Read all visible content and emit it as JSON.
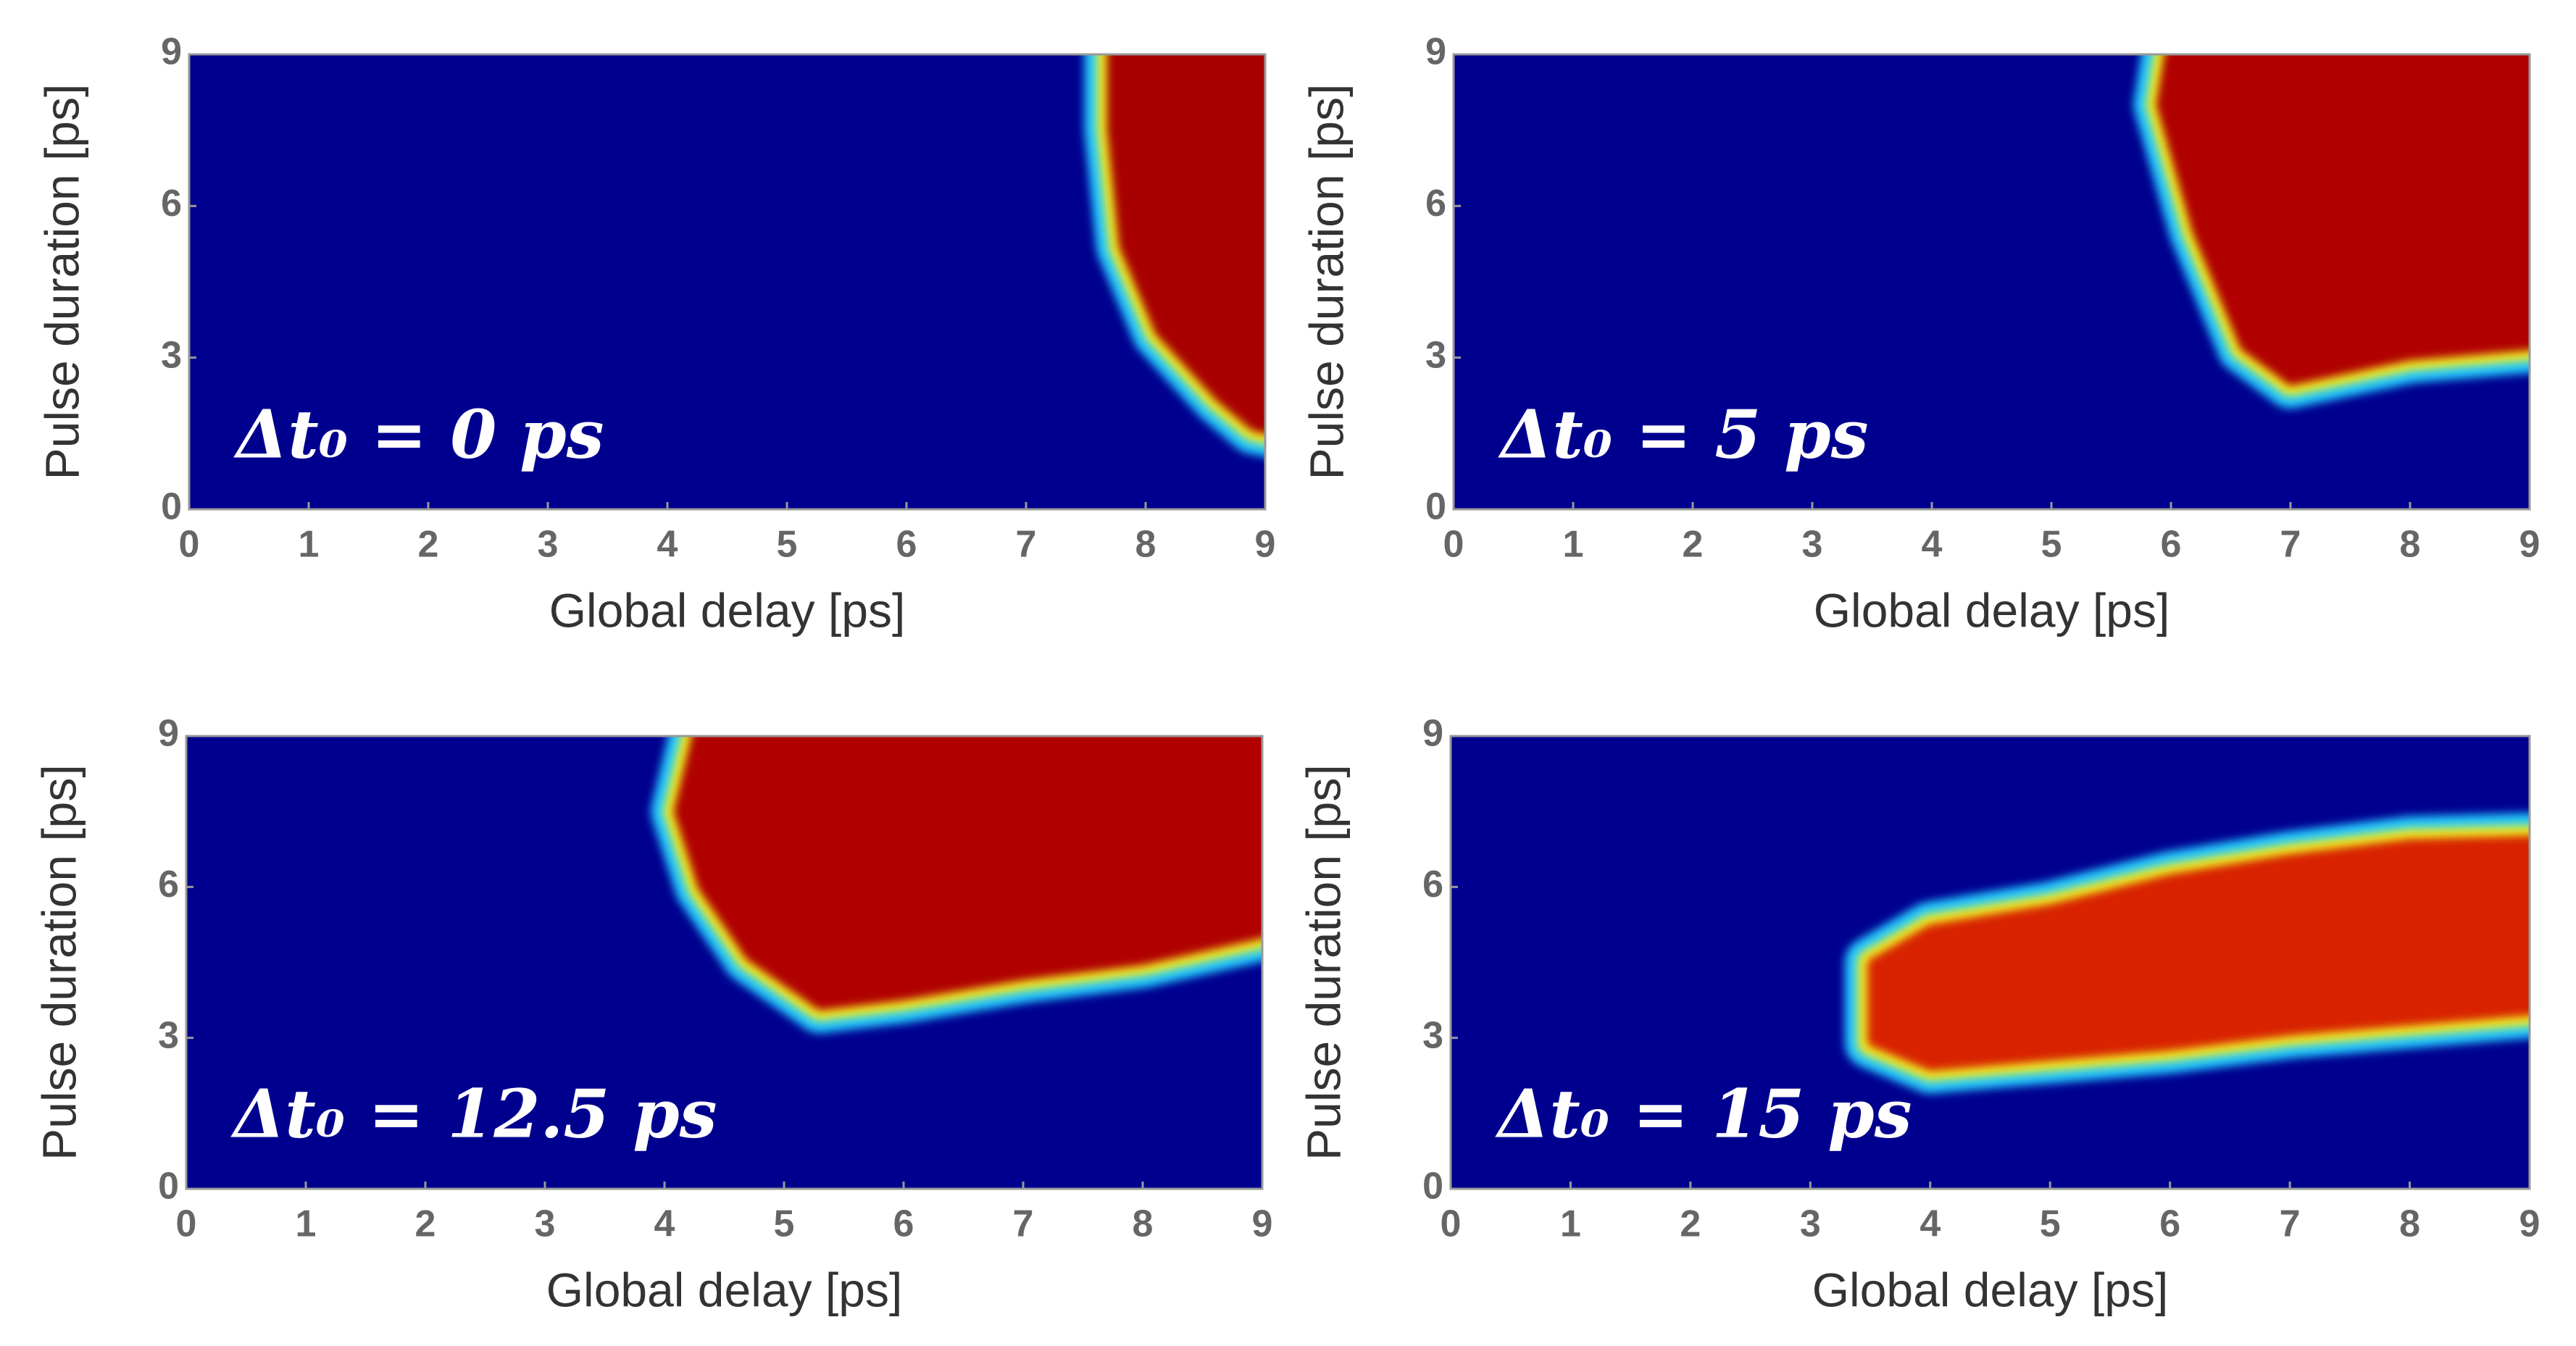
{
  "chart_data": [
    {
      "type": "heatmap",
      "annotation": "Δt₀ = 0 ps",
      "xlabel": "Global delay [ps]",
      "ylabel": "Pulse duration [ps]",
      "xlim": [
        0,
        9
      ],
      "ylim": [
        0,
        9
      ],
      "xticks": [
        0,
        1,
        2,
        3,
        4,
        5,
        6,
        7,
        8,
        9
      ],
      "yticks": [
        0,
        3,
        6,
        9
      ],
      "background": "#00008f",
      "colors": [
        "#22c8ff",
        "#f0f020",
        "#a80000"
      ],
      "region": {
        "x": [
          7.7,
          9.5,
          9.5,
          8.9,
          8.6,
          8.1,
          7.8,
          7.7
        ],
        "y": [
          9.5,
          9.5,
          1.3,
          1.6,
          2.2,
          3.5,
          5.2,
          7.5
        ]
      }
    },
    {
      "type": "heatmap",
      "annotation": "Δt₀ = 5 ps",
      "xlabel": "Global delay [ps]",
      "ylabel": "Pulse duration [ps]",
      "xlim": [
        0,
        9
      ],
      "ylim": [
        0,
        9
      ],
      "xticks": [
        0,
        1,
        2,
        3,
        4,
        5,
        6,
        7,
        8,
        9
      ],
      "yticks": [
        0,
        3,
        6,
        9
      ],
      "background": "#00008f",
      "colors": [
        "#22c8ff",
        "#f0f020",
        "#b00000"
      ],
      "region": {
        "x": [
          6.0,
          9.5,
          9.5,
          8.0,
          7.0,
          6.6,
          6.2,
          5.9
        ],
        "y": [
          9.5,
          9.5,
          3.3,
          3.0,
          2.5,
          3.2,
          5.5,
          8.0
        ]
      }
    },
    {
      "type": "heatmap",
      "annotation": "Δt₀ = 12.5 ps",
      "xlabel": "Global delay [ps]",
      "ylabel": "Pulse duration [ps]",
      "xlim": [
        0,
        9
      ],
      "ylim": [
        0,
        9
      ],
      "xticks": [
        0,
        1,
        2,
        3,
        4,
        5,
        6,
        7,
        8,
        9
      ],
      "yticks": [
        0,
        3,
        6,
        9
      ],
      "background": "#00008f",
      "colors": [
        "#22c8ff",
        "#f0f020",
        "#b00000"
      ],
      "region": {
        "x": [
          4.3,
          9.5,
          9.5,
          8.0,
          7.0,
          6.0,
          5.3,
          4.7,
          4.3,
          4.1
        ],
        "y": [
          9.5,
          9.5,
          5.3,
          4.5,
          4.2,
          3.8,
          3.6,
          4.6,
          6.0,
          7.5
        ]
      }
    },
    {
      "type": "heatmap",
      "annotation": "Δt₀ = 15 ps",
      "xlabel": "Global delay [ps]",
      "ylabel": "Pulse duration [ps]",
      "xlim": [
        0,
        9
      ],
      "ylim": [
        0,
        9
      ],
      "xticks": [
        0,
        1,
        2,
        3,
        4,
        5,
        6,
        7,
        8,
        9
      ],
      "yticks": [
        0,
        3,
        6,
        9
      ],
      "background": "#00008f",
      "colors": [
        "#22c8ff",
        "#f0f020",
        "#d82000"
      ],
      "region": {
        "x": [
          3.5,
          4.0,
          5.0,
          6.0,
          7.0,
          8.0,
          9.5,
          9.5,
          8.0,
          7.0,
          6.0,
          5.0,
          4.0,
          3.5
        ],
        "y": [
          4.5,
          5.2,
          5.6,
          6.2,
          6.6,
          6.9,
          7.0,
          3.6,
          3.3,
          3.1,
          2.8,
          2.6,
          2.4,
          2.9
        ]
      }
    }
  ]
}
